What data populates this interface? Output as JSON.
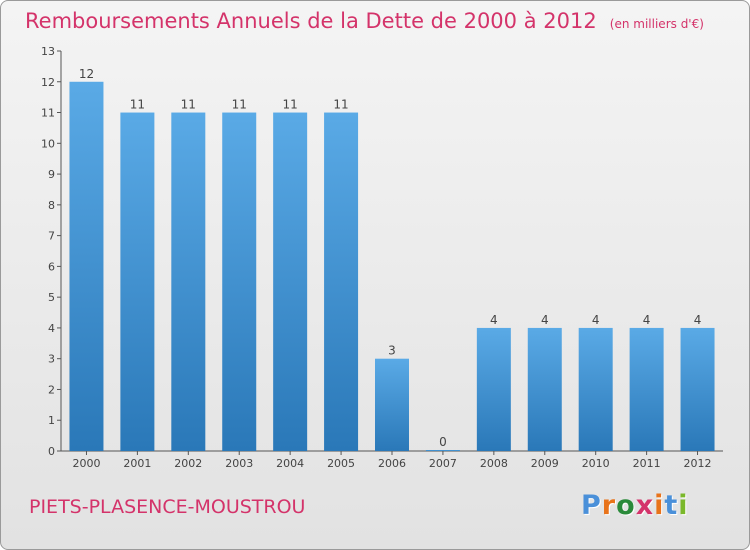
{
  "header": {
    "title": "Remboursements Annuels de la Dette de 2000 à 2012",
    "unit": "(en milliers d'€)"
  },
  "footer": {
    "commune": "PIETS-PLASENCE-MOUSTROU",
    "brand": "Proxiti"
  },
  "colors": {
    "title": "#d4336a",
    "bar_top": "#5aaae6",
    "bar_bottom": "#2a78b8",
    "brand_letters": [
      "#4a90d9",
      "#e8731a",
      "#2a8a3a",
      "#d4336a",
      "#e8731a",
      "#4a90d9",
      "#7ab82a"
    ]
  },
  "chart_data": {
    "type": "bar",
    "categories": [
      "2000",
      "2001",
      "2002",
      "2003",
      "2004",
      "2005",
      "2006",
      "2007",
      "2008",
      "2009",
      "2010",
      "2011",
      "2012"
    ],
    "values": [
      12,
      11,
      11,
      11,
      11,
      11,
      3,
      0,
      4,
      4,
      4,
      4,
      4
    ],
    "title": "Remboursements Annuels de la Dette de 2000 à 2012",
    "ylabel": "",
    "xlabel": "",
    "ylim": [
      0,
      13
    ],
    "yticks": [
      0,
      1,
      2,
      3,
      4,
      5,
      6,
      7,
      8,
      9,
      10,
      11,
      12,
      13
    ],
    "grid": false,
    "data_labels": true
  }
}
